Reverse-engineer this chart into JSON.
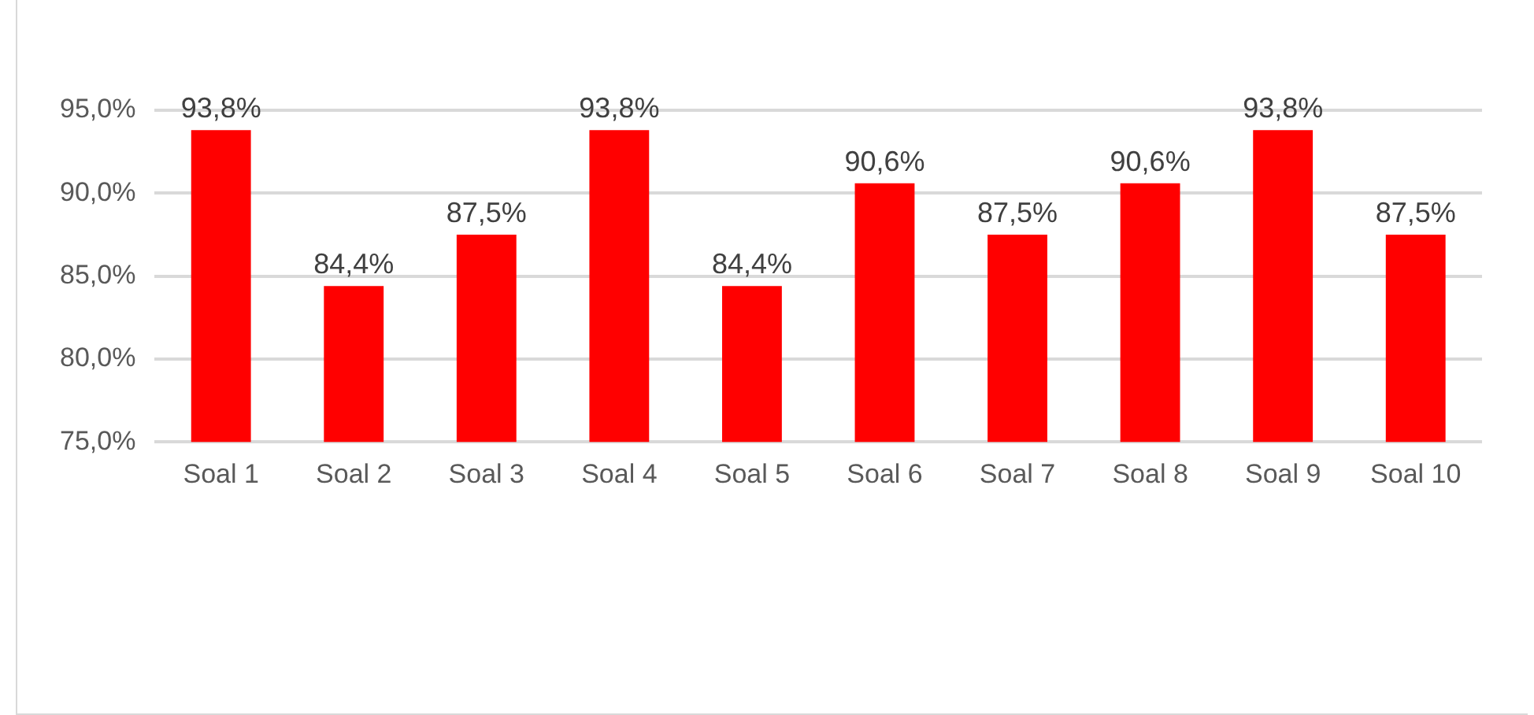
{
  "chart_data": {
    "type": "bar",
    "categories": [
      "Soal 1",
      "Soal 2",
      "Soal 3",
      "Soal 4",
      "Soal 5",
      "Soal 6",
      "Soal 7",
      "Soal 8",
      "Soal 9",
      "Soal 10"
    ],
    "values": [
      93.8,
      84.4,
      87.5,
      93.8,
      84.4,
      90.6,
      87.5,
      90.6,
      93.8,
      87.5
    ],
    "value_labels": [
      "93,8%",
      "84,4%",
      "87,5%",
      "93,8%",
      "84,4%",
      "90,6%",
      "87,5%",
      "90,6%",
      "93,8%",
      "87,5%"
    ],
    "color": "#ff0000",
    "ylim": [
      75,
      95
    ],
    "yticks": [
      {
        "value": 75,
        "label": "75,0%"
      },
      {
        "value": 80,
        "label": "80,0%"
      },
      {
        "value": 85,
        "label": "85,0%"
      },
      {
        "value": 90,
        "label": "90,0%"
      },
      {
        "value": 95,
        "label": "95,0%"
      }
    ],
    "grid": "y",
    "legend": false
  }
}
